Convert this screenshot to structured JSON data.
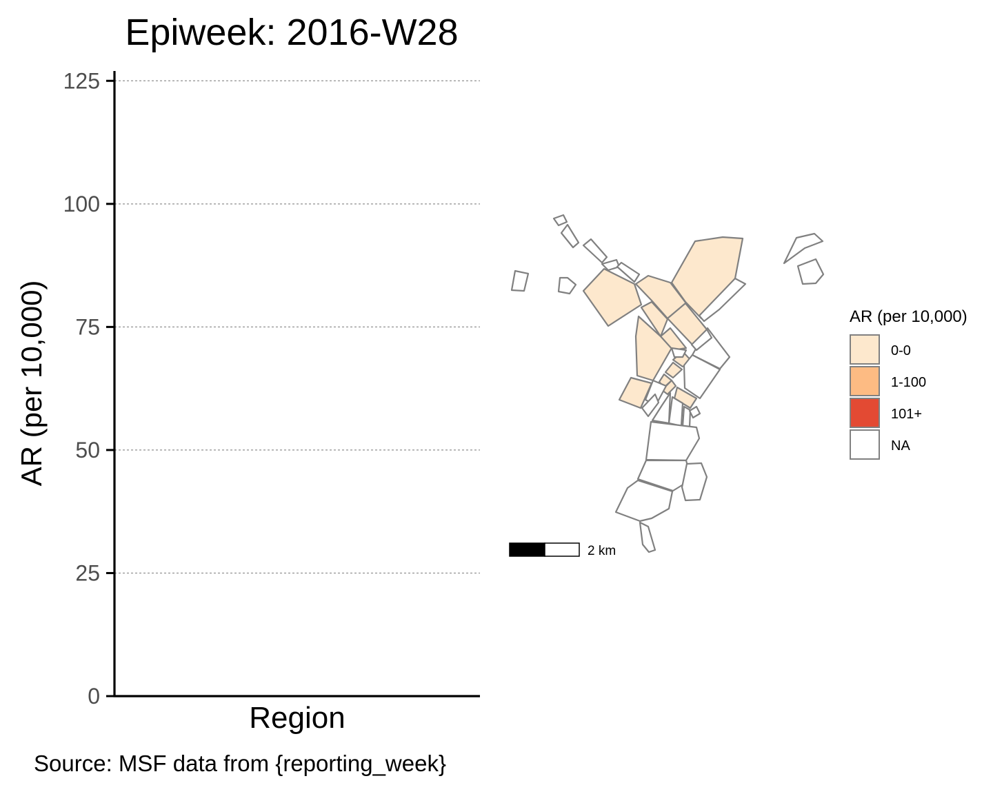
{
  "chart_data": [
    {
      "type": "bar",
      "title": "Epiweek: 2016-W28",
      "xlabel": "Region",
      "ylabel": "AR (per 10,000)",
      "categories": [],
      "values": [],
      "ylim": [
        0,
        127
      ],
      "yticks": [
        0,
        25,
        50,
        75,
        100,
        125
      ],
      "ytick_labels": [
        "0",
        "25",
        "50",
        "75",
        "100",
        "125"
      ],
      "grid": "horizontal dotted",
      "caption": "Source: MSF data from {reporting_week}"
    },
    {
      "type": "choropleth",
      "legend": {
        "title": "AR (per 10,000)",
        "placement": "right",
        "items": [
          {
            "label": "0-0",
            "color": "#fde8cd"
          },
          {
            "label": "1-100",
            "color": "#fdbb83"
          },
          {
            "label": "101+",
            "color": "#e34a33"
          },
          {
            "label": "NA",
            "color": "#ffffff"
          }
        ]
      },
      "region_category_counts": {
        "0-0": 13,
        "1-100": 0,
        "101+": 0,
        "NA": 25
      },
      "scalebar_label": "2 km",
      "border_color": "#808080"
    }
  ]
}
